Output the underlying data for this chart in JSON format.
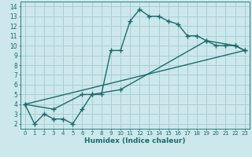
{
  "xlabel": "Humidex (Indice chaleur)",
  "bg_color": "#cce8ec",
  "grid_color": "#aacdd4",
  "line_color": "#1a6b6b",
  "xlim": [
    -0.5,
    23.5
  ],
  "ylim": [
    1.5,
    14.5
  ],
  "xticks": [
    0,
    1,
    2,
    3,
    4,
    5,
    6,
    7,
    8,
    9,
    10,
    11,
    12,
    13,
    14,
    15,
    16,
    17,
    18,
    19,
    20,
    21,
    22,
    23
  ],
  "yticks": [
    2,
    3,
    4,
    5,
    6,
    7,
    8,
    9,
    10,
    11,
    12,
    13,
    14
  ],
  "line1_x": [
    0,
    1,
    2,
    3,
    4,
    5,
    6,
    7,
    8,
    9,
    10,
    11,
    12,
    13,
    14,
    15,
    16,
    17,
    18,
    19,
    20,
    21,
    22,
    23
  ],
  "line1_y": [
    4,
    2,
    3,
    2.5,
    2.5,
    2,
    3.5,
    5,
    5,
    9.5,
    9.5,
    12.5,
    13.7,
    13,
    13,
    12.5,
    12.2,
    11,
    11,
    10.5,
    10,
    10,
    10,
    9.5
  ],
  "line2_x": [
    0,
    3,
    6,
    7,
    10,
    19,
    22,
    23
  ],
  "line2_y": [
    4,
    3.5,
    5,
    5,
    5.5,
    10.5,
    10,
    9.5
  ],
  "line3_x": [
    0,
    23
  ],
  "line3_y": [
    4,
    9.5
  ]
}
